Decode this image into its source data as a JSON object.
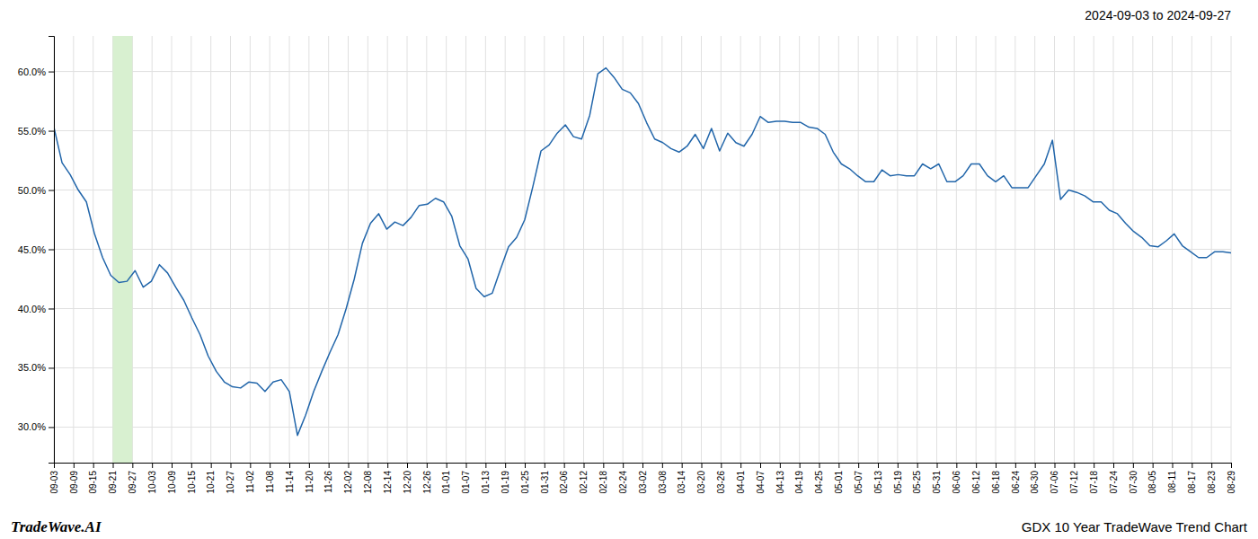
{
  "chart_data": {
    "type": "line",
    "title": "2024-09-03 to 2024-09-27",
    "annotations": [
      "TradeWave.AI",
      "GDX 10 Year TradeWave Trend Chart"
    ],
    "color": "#2266aa",
    "grid": true,
    "highlight": {
      "range": [
        7.25,
        9.666667
      ],
      "color": "#d8f0d0"
    },
    "xlim": [
      0,
      145
    ],
    "xticks": [
      {
        "value": 0,
        "label": "09-03"
      },
      {
        "value": 2.416667,
        "label": "09-09"
      },
      {
        "value": 4.833333,
        "label": "09-15"
      },
      {
        "value": 7.25,
        "label": "09-21"
      },
      {
        "value": 9.666667,
        "label": "09-27"
      },
      {
        "value": 12.083333,
        "label": "10-03"
      },
      {
        "value": 14.5,
        "label": "10-09"
      },
      {
        "value": 16.916667,
        "label": "10-15"
      },
      {
        "value": 19.333333,
        "label": "10-21"
      },
      {
        "value": 21.75,
        "label": "10-27"
      },
      {
        "value": 24.166667,
        "label": "11-02"
      },
      {
        "value": 26.583333,
        "label": "11-08"
      },
      {
        "value": 29,
        "label": "11-14"
      },
      {
        "value": 31.416667,
        "label": "11-20"
      },
      {
        "value": 33.833333,
        "label": "11-26"
      },
      {
        "value": 36.25,
        "label": "12-02"
      },
      {
        "value": 38.666667,
        "label": "12-08"
      },
      {
        "value": 41.083333,
        "label": "12-14"
      },
      {
        "value": 43.5,
        "label": "12-20"
      },
      {
        "value": 45.916667,
        "label": "12-26"
      },
      {
        "value": 48.333333,
        "label": "01-01"
      },
      {
        "value": 50.75,
        "label": "01-07"
      },
      {
        "value": 53.166667,
        "label": "01-13"
      },
      {
        "value": 55.583333,
        "label": "01-19"
      },
      {
        "value": 58,
        "label": "01-25"
      },
      {
        "value": 60.416667,
        "label": "01-31"
      },
      {
        "value": 62.833333,
        "label": "02-06"
      },
      {
        "value": 65.25,
        "label": "02-12"
      },
      {
        "value": 67.666667,
        "label": "02-18"
      },
      {
        "value": 70.083333,
        "label": "02-24"
      },
      {
        "value": 72.5,
        "label": "03-02"
      },
      {
        "value": 74.916667,
        "label": "03-08"
      },
      {
        "value": 77.333333,
        "label": "03-14"
      },
      {
        "value": 79.75,
        "label": "03-20"
      },
      {
        "value": 82.166667,
        "label": "03-26"
      },
      {
        "value": 84.583333,
        "label": "04-01"
      },
      {
        "value": 87,
        "label": "04-07"
      },
      {
        "value": 89.416667,
        "label": "04-13"
      },
      {
        "value": 91.833333,
        "label": "04-19"
      },
      {
        "value": 94.25,
        "label": "04-25"
      },
      {
        "value": 96.666667,
        "label": "05-01"
      },
      {
        "value": 99.083333,
        "label": "05-07"
      },
      {
        "value": 101.5,
        "label": "05-13"
      },
      {
        "value": 103.916667,
        "label": "05-19"
      },
      {
        "value": 106.333333,
        "label": "05-25"
      },
      {
        "value": 108.75,
        "label": "05-31"
      },
      {
        "value": 111.166667,
        "label": "06-06"
      },
      {
        "value": 113.583333,
        "label": "06-12"
      },
      {
        "value": 116,
        "label": "06-18"
      },
      {
        "value": 118.416667,
        "label": "06-24"
      },
      {
        "value": 120.833333,
        "label": "06-30"
      },
      {
        "value": 123.25,
        "label": "07-06"
      },
      {
        "value": 125.666667,
        "label": "07-12"
      },
      {
        "value": 128.083333,
        "label": "07-18"
      },
      {
        "value": 130.5,
        "label": "07-24"
      },
      {
        "value": 132.916667,
        "label": "07-30"
      },
      {
        "value": 135.333333,
        "label": "08-05"
      },
      {
        "value": 137.75,
        "label": "08-11"
      },
      {
        "value": 140.166667,
        "label": "08-17"
      },
      {
        "value": 142.583333,
        "label": "08-23"
      },
      {
        "value": 145,
        "label": "08-29"
      }
    ],
    "ylim": [
      0.27,
      0.63
    ],
    "yticks": [
      {
        "value": 0.3,
        "label": "30.0%"
      },
      {
        "value": 0.35,
        "label": "35.0%"
      },
      {
        "value": 0.4,
        "label": "40.0%"
      },
      {
        "value": 0.45,
        "label": "45.0%"
      },
      {
        "value": 0.5,
        "label": "50.0%"
      },
      {
        "value": 0.55,
        "label": "55.0%"
      },
      {
        "value": 0.6,
        "label": "60.0%"
      }
    ],
    "values": [
      0.553,
      0.523,
      0.513,
      0.5,
      0.49,
      0.463,
      0.443,
      0.428,
      0.422,
      0.423,
      0.432,
      0.418,
      0.423,
      0.437,
      0.43,
      0.418,
      0.407,
      0.392,
      0.378,
      0.36,
      0.347,
      0.338,
      0.334,
      0.333,
      0.338,
      0.337,
      0.33,
      0.338,
      0.34,
      0.33,
      0.293,
      0.31,
      0.33,
      0.347,
      0.363,
      0.378,
      0.4,
      0.425,
      0.455,
      0.472,
      0.48,
      0.467,
      0.473,
      0.47,
      0.477,
      0.487,
      0.488,
      0.493,
      0.49,
      0.478,
      0.453,
      0.442,
      0.417,
      0.41,
      0.413,
      0.433,
      0.452,
      0.46,
      0.475,
      0.503,
      0.533,
      0.538,
      0.548,
      0.555,
      0.545,
      0.543,
      0.563,
      0.598,
      0.603,
      0.595,
      0.585,
      0.582,
      0.573,
      0.557,
      0.543,
      0.54,
      0.535,
      0.532,
      0.537,
      0.547,
      0.535,
      0.552,
      0.533,
      0.548,
      0.54,
      0.537,
      0.547,
      0.562,
      0.557,
      0.558,
      0.558,
      0.557,
      0.557,
      0.553,
      0.552,
      0.547,
      0.532,
      0.522,
      0.518,
      0.512,
      0.507,
      0.507,
      0.517,
      0.512,
      0.513,
      0.512,
      0.512,
      0.522,
      0.518,
      0.522,
      0.507,
      0.507,
      0.512,
      0.522,
      0.522,
      0.512,
      0.507,
      0.512,
      0.502,
      0.502,
      0.502,
      0.512,
      0.522,
      0.542,
      0.492,
      0.5,
      0.498,
      0.495,
      0.49,
      0.49,
      0.483,
      0.48,
      0.472,
      0.465,
      0.46,
      0.453,
      0.452,
      0.457,
      0.463,
      0.453,
      0.448,
      0.443,
      0.443,
      0.448,
      0.448,
      0.447
    ]
  }
}
